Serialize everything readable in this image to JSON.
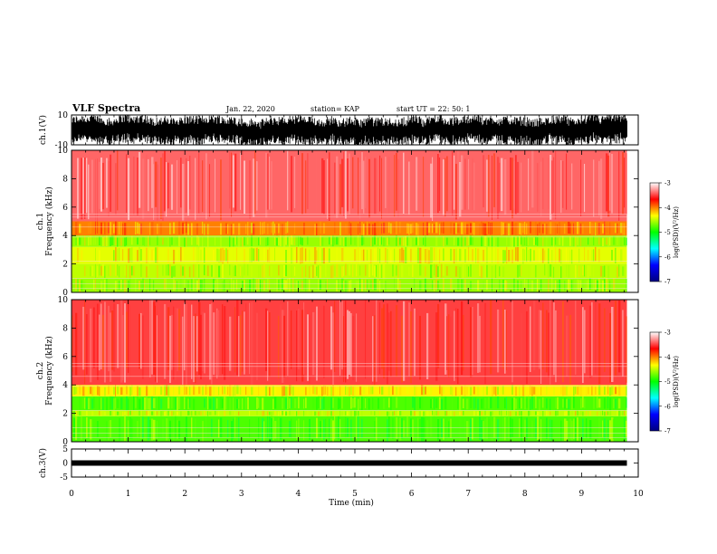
{
  "header": {
    "title": "VLF Spectra",
    "date": "Jan. 22, 2020",
    "station": "station= KAP",
    "start": "start  UT  =   22: 50: 1"
  },
  "chart_data": [
    {
      "type": "line",
      "name": "ch1-waveform",
      "ylabel": "ch.1(V)",
      "ylim": [
        -10,
        10
      ],
      "yticks": [
        "10",
        "-10"
      ],
      "xlim": [
        0,
        10
      ]
    },
    {
      "type": "heatmap",
      "name": "ch1-spectrogram",
      "ylabel": "ch.1\nFrequency  (kHz)",
      "ylim": [
        0,
        10
      ],
      "yticks": [
        "0",
        "2",
        "4",
        "6",
        "8",
        "10"
      ],
      "xlim": [
        0,
        10
      ],
      "data_end_min": 9.8,
      "colorbar": {
        "label": "log(PSD)(V²/Hz)",
        "range": [
          -7,
          -3
        ],
        "ticks": [
          "-3",
          "-4",
          "-5",
          "-6",
          "-7"
        ],
        "colors": [
          "#000080",
          "#0000ff",
          "#00ffff",
          "#00ff00",
          "#ffff00",
          "#ff0000",
          "#ffffff"
        ]
      },
      "bands": [
        {
          "from": 0,
          "to": 1,
          "level": -4.6
        },
        {
          "from": 1,
          "to": 2,
          "level": -4.5
        },
        {
          "from": 2,
          "to": 3.2,
          "level": -4.4
        },
        {
          "from": 3.2,
          "to": 4,
          "level": -4.6
        },
        {
          "from": 4,
          "to": 5,
          "level": -4.0
        },
        {
          "from": 5,
          "to": 10,
          "level": -3.4
        }
      ]
    },
    {
      "type": "heatmap",
      "name": "ch2-spectrogram",
      "ylabel": "ch.2\nFrequency  (kHz)",
      "ylim": [
        0,
        10
      ],
      "yticks": [
        "0",
        "2",
        "4",
        "6",
        "8",
        "10"
      ],
      "xlim": [
        0,
        10
      ],
      "data_end_min": 9.8,
      "colorbar": {
        "label": "log(PSD)(V²/Hz)",
        "range": [
          -7,
          -3
        ],
        "ticks": [
          "-3",
          "-4",
          "-5",
          "-6",
          "-7"
        ],
        "colors": [
          "#000080",
          "#0000ff",
          "#00ffff",
          "#00ff00",
          "#ffff00",
          "#ff0000",
          "#ffffff"
        ]
      },
      "bands": [
        {
          "from": 0,
          "to": 1.8,
          "level": -4.8
        },
        {
          "from": 1.8,
          "to": 2.2,
          "level": -4.5
        },
        {
          "from": 2.2,
          "to": 3.2,
          "level": -4.8
        },
        {
          "from": 3.2,
          "to": 4,
          "level": -4.3
        },
        {
          "from": 4,
          "to": 10,
          "level": -3.5
        }
      ]
    },
    {
      "type": "line",
      "name": "ch3-waveform",
      "ylabel": "ch.3(V)",
      "ylim": [
        -5,
        5
      ],
      "yticks": [
        "5",
        "0",
        "-5"
      ],
      "xlim": [
        0,
        10
      ],
      "level": 0
    }
  ],
  "x_axis": {
    "label": "Time  (min)",
    "ticks": [
      "0",
      "1",
      "2",
      "3",
      "4",
      "5",
      "6",
      "7",
      "8",
      "9",
      "10"
    ]
  }
}
